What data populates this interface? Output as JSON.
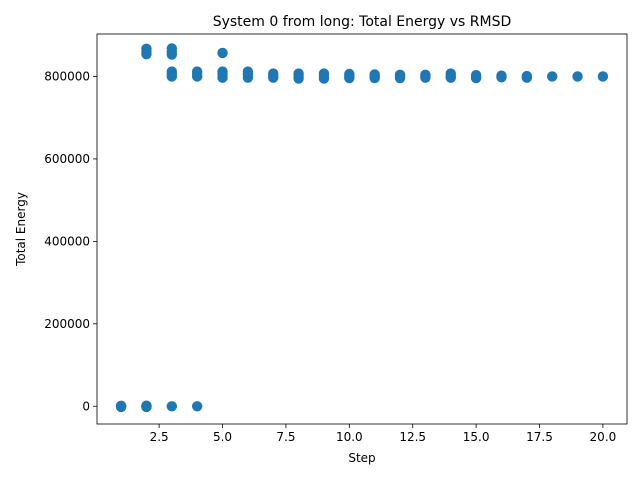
{
  "chart_data": {
    "type": "scatter",
    "title": "System 0 from long: Total Energy vs RMSD",
    "xlabel": "Step",
    "ylabel": "Total Energy",
    "xlim": [
      0.05,
      20.95
    ],
    "ylim": [
      -43000,
      903000
    ],
    "xticks": [
      2.5,
      5.0,
      7.5,
      10.0,
      12.5,
      15.0,
      17.5,
      20.0
    ],
    "xtick_labels": [
      "2.5",
      "5.0",
      "7.5",
      "10.0",
      "12.5",
      "15.0",
      "17.5",
      "20.0"
    ],
    "yticks": [
      0,
      200000,
      400000,
      600000,
      800000
    ],
    "ytick_labels": [
      "0",
      "200000",
      "400000",
      "600000",
      "800000"
    ],
    "grid": false,
    "marker_color": "#1f77b4",
    "series": [
      {
        "points": [
          [
            1,
            0
          ],
          [
            1,
            -1500
          ],
          [
            1,
            1200
          ],
          [
            2,
            0
          ],
          [
            2,
            -1500
          ],
          [
            2,
            1500
          ],
          [
            2,
            -800
          ],
          [
            3,
            0
          ],
          [
            4,
            0
          ],
          [
            2,
            867000
          ],
          [
            2,
            860000
          ],
          [
            2,
            854000
          ],
          [
            3,
            868000
          ],
          [
            3,
            860000
          ],
          [
            3,
            853000
          ],
          [
            3,
            812000
          ],
          [
            3,
            806000
          ],
          [
            3,
            800000
          ],
          [
            4,
            812000
          ],
          [
            4,
            806000
          ],
          [
            4,
            800000
          ],
          [
            5,
            857000
          ],
          [
            5,
            812000
          ],
          [
            5,
            805000
          ],
          [
            5,
            797000
          ],
          [
            6,
            812000
          ],
          [
            6,
            805000
          ],
          [
            6,
            797000
          ],
          [
            7,
            807000
          ],
          [
            7,
            801000
          ],
          [
            7,
            797000
          ],
          [
            8,
            807000
          ],
          [
            8,
            800000
          ],
          [
            8,
            795000
          ],
          [
            9,
            807000
          ],
          [
            9,
            800000
          ],
          [
            9,
            795000
          ],
          [
            10,
            806000
          ],
          [
            10,
            800000
          ],
          [
            10,
            796000
          ],
          [
            11,
            805000
          ],
          [
            11,
            800000
          ],
          [
            11,
            796000
          ],
          [
            12,
            804000
          ],
          [
            12,
            800000
          ],
          [
            12,
            796000
          ],
          [
            13,
            804000
          ],
          [
            13,
            800000
          ],
          [
            13,
            797000
          ],
          [
            14,
            807000
          ],
          [
            14,
            800000
          ],
          [
            14,
            797000
          ],
          [
            15,
            803000
          ],
          [
            15,
            799000
          ],
          [
            15,
            796000
          ],
          [
            16,
            802000
          ],
          [
            16,
            798000
          ],
          [
            17,
            801000
          ],
          [
            17,
            797000
          ],
          [
            18,
            800000
          ],
          [
            19,
            800000
          ],
          [
            20,
            800000
          ]
        ]
      }
    ]
  }
}
